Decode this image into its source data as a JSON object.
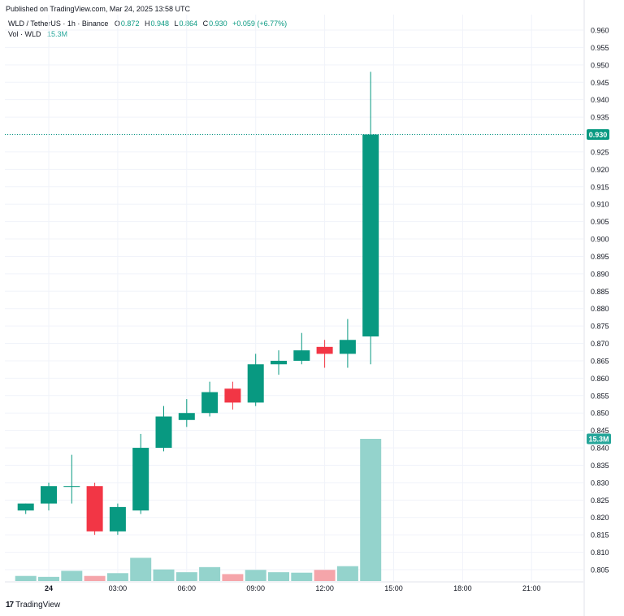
{
  "published": "Published on TradingView.com, Mar 24, 2025 13:58 UTC",
  "legend": {
    "symbol": "WLD / TetherUS · 1h · Binance",
    "o_label": "O",
    "o_value": "0.872",
    "h_label": "H",
    "h_value": "0.948",
    "l_label": "L",
    "l_value": "0.864",
    "c_label": "C",
    "c_value": "0.930",
    "change": "+0.059 (+6.77%)",
    "vol_label": "Vol · WLD",
    "vol_value": "15.3M"
  },
  "footer": {
    "brand": "TradingView"
  },
  "colors": {
    "up": "#089981",
    "down": "#f23645",
    "vol_up": "#94d3cc",
    "vol_down": "#f5a5aa",
    "grid": "#f0f3fa"
  },
  "chart_data": {
    "type": "candlestick",
    "title": "WLD / TetherUS · 1h · Binance",
    "ylim": [
      0.802,
      0.962
    ],
    "y_ticks": [
      "0.960",
      "0.955",
      "0.950",
      "0.945",
      "0.940",
      "0.935",
      "0.930",
      "0.925",
      "0.920",
      "0.915",
      "0.910",
      "0.905",
      "0.900",
      "0.895",
      "0.890",
      "0.885",
      "0.880",
      "0.875",
      "0.870",
      "0.865",
      "0.860",
      "0.855",
      "0.850",
      "0.845",
      "0.840",
      "0.835",
      "0.830",
      "0.825",
      "0.820",
      "0.815",
      "0.810",
      "0.805"
    ],
    "x_ticks": [
      "24",
      "03:00",
      "06:00",
      "09:00",
      "12:00",
      "15:00",
      "18:00",
      "21:00"
    ],
    "x_tick_index": [
      0,
      3,
      6,
      9,
      12,
      15,
      18,
      21
    ],
    "last_price_label": "0.930",
    "last_volume_label": "15.3M",
    "candles": [
      {
        "index": -1,
        "open": 0.822,
        "high": 0.824,
        "low": 0.821,
        "close": 0.824,
        "volume": 0.55
      },
      {
        "index": 0,
        "open": 0.824,
        "high": 0.83,
        "low": 0.822,
        "close": 0.829,
        "volume": 0.45
      },
      {
        "index": 1,
        "open": 0.829,
        "high": 0.838,
        "low": 0.824,
        "close": 0.829,
        "volume": 1.1
      },
      {
        "index": 2,
        "open": 0.829,
        "high": 0.83,
        "low": 0.815,
        "close": 0.816,
        "volume": 0.55
      },
      {
        "index": 3,
        "open": 0.816,
        "high": 0.824,
        "low": 0.815,
        "close": 0.823,
        "volume": 0.85
      },
      {
        "index": 4,
        "open": 0.822,
        "high": 0.844,
        "low": 0.821,
        "close": 0.84,
        "volume": 2.5
      },
      {
        "index": 5,
        "open": 0.84,
        "high": 0.852,
        "low": 0.839,
        "close": 0.849,
        "volume": 1.25
      },
      {
        "index": 6,
        "open": 0.848,
        "high": 0.854,
        "low": 0.846,
        "close": 0.85,
        "volume": 0.95
      },
      {
        "index": 7,
        "open": 0.85,
        "high": 0.859,
        "low": 0.849,
        "close": 0.856,
        "volume": 1.5
      },
      {
        "index": 8,
        "open": 0.857,
        "high": 0.859,
        "low": 0.851,
        "close": 0.853,
        "volume": 0.75
      },
      {
        "index": 9,
        "open": 0.853,
        "high": 0.867,
        "low": 0.852,
        "close": 0.864,
        "volume": 1.2
      },
      {
        "index": 10,
        "open": 0.864,
        "high": 0.868,
        "low": 0.861,
        "close": 0.865,
        "volume": 0.95
      },
      {
        "index": 11,
        "open": 0.865,
        "high": 0.873,
        "low": 0.864,
        "close": 0.868,
        "volume": 0.9
      },
      {
        "index": 12,
        "open": 0.869,
        "high": 0.871,
        "low": 0.863,
        "close": 0.867,
        "volume": 1.2
      },
      {
        "index": 13,
        "open": 0.867,
        "high": 0.877,
        "low": 0.863,
        "close": 0.871,
        "volume": 1.6
      },
      {
        "index": 14,
        "open": 0.872,
        "high": 0.948,
        "low": 0.864,
        "close": 0.93,
        "volume": 15.3
      }
    ]
  }
}
